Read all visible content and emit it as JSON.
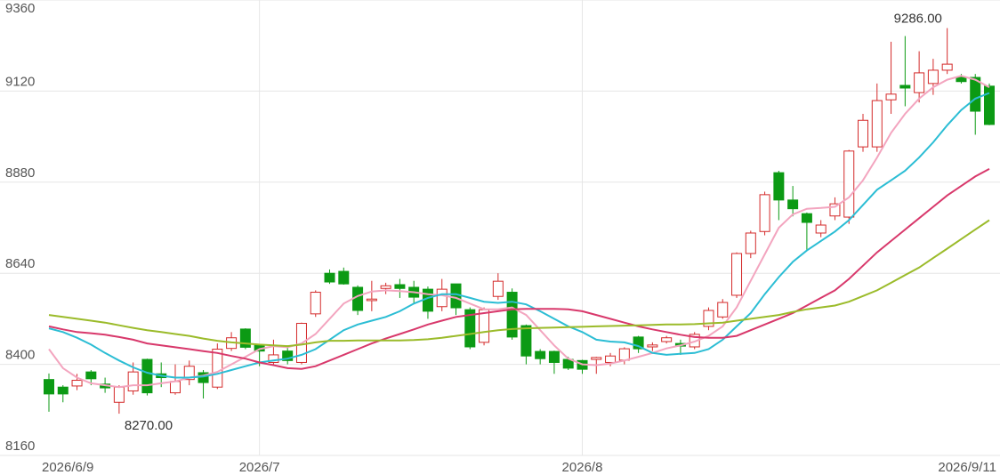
{
  "chart_data": {
    "type": "candlestick",
    "categories": [
      "2026/6/9",
      null,
      null,
      null,
      null,
      null,
      null,
      null,
      null,
      null,
      null,
      null,
      null,
      null,
      null,
      "2026/7",
      null,
      null,
      null,
      null,
      null,
      null,
      null,
      null,
      null,
      null,
      null,
      null,
      null,
      null,
      null,
      null,
      null,
      null,
      null,
      null,
      null,
      null,
      "2026/8",
      null,
      null,
      null,
      null,
      null,
      null,
      null,
      null,
      null,
      null,
      null,
      null,
      null,
      null,
      null,
      null,
      null,
      null,
      null,
      null,
      null,
      null,
      null,
      null,
      null,
      null,
      null,
      null,
      "2026/9/11"
    ],
    "open": [
      8360,
      8340,
      8343,
      8380,
      8348,
      8300,
      8330,
      8413,
      8375,
      8325,
      8360,
      8378,
      8340,
      8442,
      8493,
      8450,
      8405,
      8435,
      8405,
      8533,
      8640,
      8645,
      8603,
      8568,
      8600,
      8610,
      8603,
      8598,
      8552,
      8612,
      8544,
      8458,
      8579,
      8590,
      8502,
      8434,
      8434,
      8413,
      8410,
      8413,
      8405,
      8411,
      8472,
      8446,
      8460,
      8455,
      8446,
      8500,
      8525,
      8582,
      8692,
      8750,
      8905,
      8833,
      8797,
      8746,
      8791,
      8788,
      8973,
      8973,
      9097,
      9135,
      9116,
      9140,
      9175,
      9156,
      9156,
      9133
    ],
    "high": [
      8376,
      8345,
      8375,
      8385,
      8365,
      8345,
      8405,
      8415,
      8405,
      8400,
      8410,
      8385,
      8455,
      8485,
      8495,
      8452,
      8465,
      8450,
      8510,
      8595,
      8650,
      8655,
      8608,
      8620,
      8615,
      8625,
      8620,
      8605,
      8625,
      8612,
      8550,
      8550,
      8640,
      8600,
      8505,
      8440,
      8436,
      8420,
      8412,
      8420,
      8430,
      8445,
      8475,
      8458,
      8475,
      8465,
      8485,
      8550,
      8572,
      8695,
      8752,
      8855,
      8910,
      8870,
      8800,
      8780,
      8840,
      8965,
      9060,
      9140,
      9250,
      9265,
      9225,
      9205,
      9286,
      9165,
      9165,
      9140
    ],
    "low": [
      8275,
      8300,
      8332,
      8345,
      8325,
      8270,
      8320,
      8318,
      8340,
      8320,
      8345,
      8310,
      8335,
      8435,
      8440,
      8395,
      8400,
      8400,
      8400,
      8525,
      8612,
      8610,
      8530,
      8540,
      8585,
      8575,
      8560,
      8520,
      8540,
      8530,
      8440,
      8450,
      8570,
      8465,
      8400,
      8400,
      8375,
      8385,
      8375,
      8375,
      8395,
      8400,
      8430,
      8435,
      8455,
      8425,
      8440,
      8490,
      8520,
      8575,
      8680,
      8740,
      8780,
      8790,
      8700,
      8735,
      8780,
      8770,
      8960,
      8960,
      9060,
      9080,
      9090,
      9110,
      9165,
      9140,
      9005,
      9030
    ],
    "close": [
      8322,
      8322,
      8358,
      8362,
      8338,
      8340,
      8380,
      8325,
      8365,
      8355,
      8395,
      8352,
      8440,
      8470,
      8445,
      8435,
      8425,
      8410,
      8508,
      8590,
      8617,
      8612,
      8542,
      8572,
      8607,
      8600,
      8577,
      8540,
      8598,
      8549,
      8446,
      8544,
      8619,
      8472,
      8422,
      8415,
      8405,
      8390,
      8387,
      8418,
      8422,
      8441,
      8441,
      8451,
      8470,
      8448,
      8479,
      8542,
      8563,
      8692,
      8746,
      8847,
      8833,
      8810,
      8774,
      8767,
      8823,
      8962,
      9043,
      9095,
      9112,
      9128,
      9168,
      9175,
      9191,
      9145,
      9067,
      9032
    ],
    "up_color": "#d42a2a",
    "down_color": "#0c9a14",
    "lines": [
      {
        "color": "#f3a5bf",
        "values": [
          8440,
          8390,
          8365,
          8350,
          8345,
          8340,
          8345,
          8345,
          8350,
          8355,
          8365,
          8370,
          8380,
          8400,
          8420,
          8440,
          8448,
          8445,
          8455,
          8480,
          8520,
          8560,
          8580,
          8592,
          8595,
          8593,
          8590,
          8585,
          8582,
          8575,
          8560,
          8545,
          8545,
          8550,
          8530,
          8490,
          8450,
          8415,
          8400,
          8398,
          8402,
          8410,
          8420,
          8430,
          8442,
          8450,
          8460,
          8475,
          8500,
          8550,
          8620,
          8690,
          8760,
          8795,
          8810,
          8812,
          8815,
          8840,
          8885,
          8945,
          9010,
          9060,
          9100,
          9130,
          9150,
          9160,
          9150,
          9130
        ]
      },
      {
        "color": "#2bbdd4",
        "values": [
          8495,
          8485,
          8470,
          8452,
          8430,
          8410,
          8392,
          8378,
          8370,
          8365,
          8365,
          8368,
          8375,
          8385,
          8395,
          8405,
          8410,
          8415,
          8425,
          8440,
          8465,
          8490,
          8505,
          8515,
          8525,
          8540,
          8560,
          8575,
          8585,
          8585,
          8575,
          8565,
          8562,
          8565,
          8558,
          8540,
          8520,
          8500,
          8485,
          8465,
          8460,
          8458,
          8448,
          8430,
          8425,
          8428,
          8430,
          8440,
          8465,
          8500,
          8535,
          8585,
          8630,
          8670,
          8700,
          8725,
          8750,
          8780,
          8820,
          8860,
          8885,
          8910,
          8945,
          8985,
          9030,
          9070,
          9100,
          9115
        ]
      },
      {
        "color": "#d8386b",
        "values": [
          8500,
          8492,
          8485,
          8482,
          8478,
          8472,
          8465,
          8455,
          8450,
          8445,
          8440,
          8435,
          8430,
          8422,
          8415,
          8405,
          8398,
          8390,
          8388,
          8395,
          8410,
          8425,
          8440,
          8455,
          8468,
          8480,
          8492,
          8505,
          8515,
          8525,
          8530,
          8535,
          8540,
          8545,
          8546,
          8546,
          8546,
          8545,
          8540,
          8530,
          8520,
          8510,
          8500,
          8492,
          8485,
          8478,
          8472,
          8470,
          8470,
          8475,
          8490,
          8505,
          8520,
          8535,
          8555,
          8575,
          8595,
          8625,
          8660,
          8695,
          8725,
          8755,
          8785,
          8815,
          8845,
          8870,
          8895,
          8915
        ]
      },
      {
        "color": "#9bbb2a",
        "values": [
          8530,
          8525,
          8520,
          8515,
          8510,
          8503,
          8496,
          8490,
          8485,
          8480,
          8475,
          8468,
          8462,
          8458,
          8455,
          8452,
          8450,
          8448,
          8452,
          8458,
          8462,
          8462,
          8463,
          8463,
          8463,
          8463,
          8464,
          8466,
          8470,
          8475,
          8480,
          8485,
          8490,
          8493,
          8495,
          8496,
          8497,
          8498,
          8499,
          8500,
          8501,
          8502,
          8503,
          8504,
          8505,
          8505,
          8506,
          8508,
          8510,
          8515,
          8520,
          8525,
          8530,
          8538,
          8545,
          8550,
          8555,
          8565,
          8580,
          8595,
          8615,
          8635,
          8655,
          8680,
          8705,
          8730,
          8755,
          8780
        ]
      }
    ],
    "high_label": "9286.00",
    "low_label": "8270.00",
    "ylim": [
      8160,
      9360
    ],
    "yticks": [
      8160,
      8400,
      8640,
      8880,
      9120,
      9360
    ],
    "grid": true
  }
}
